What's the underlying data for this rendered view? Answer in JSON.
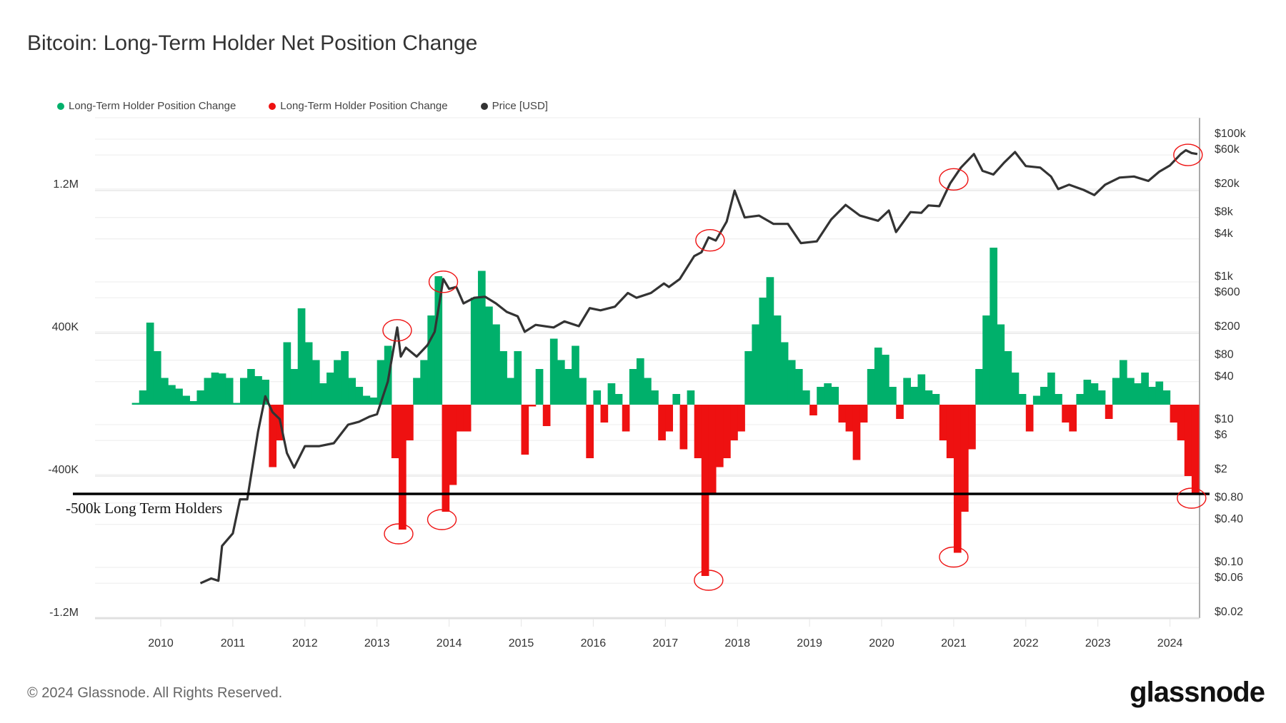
{
  "title": "Bitcoin: Long-Term Holder Net Position Change",
  "legend": [
    {
      "label": "Long-Term Holder Position Change",
      "color": "#00b06b"
    },
    {
      "label": "Long-Term Holder Position Change",
      "color": "#ee1111"
    },
    {
      "label": "Price [USD]",
      "color": "#333333"
    }
  ],
  "footer": "© 2024 Glassnode. All Rights Reserved.",
  "logo": "glassnode",
  "chart_data": {
    "type": "bar",
    "title": "Bitcoin: Long-Term Holder Net Position Change",
    "left_axis": {
      "ticks": [
        {
          "v": 1200,
          "label": "1.2M"
        },
        {
          "v": 400,
          "label": "400K"
        },
        {
          "v": -400,
          "label": "-400K"
        },
        {
          "v": -1200,
          "label": "-1.2M"
        }
      ],
      "range_k": [
        -1200,
        1400
      ],
      "unit": "thousand BTC"
    },
    "right_axis": {
      "scale": "log",
      "ticks": [
        {
          "v": 100000,
          "label": "$100k"
        },
        {
          "v": 60000,
          "label": "$60k"
        },
        {
          "v": 20000,
          "label": "$20k"
        },
        {
          "v": 8000,
          "label": "$8k"
        },
        {
          "v": 4000,
          "label": "$4k"
        },
        {
          "v": 1000,
          "label": "$1k"
        },
        {
          "v": 600,
          "label": "$600"
        },
        {
          "v": 200,
          "label": "$200"
        },
        {
          "v": 80,
          "label": "$80"
        },
        {
          "v": 40,
          "label": "$40"
        },
        {
          "v": 10,
          "label": "$10"
        },
        {
          "v": 6,
          "label": "$6"
        },
        {
          "v": 2,
          "label": "$2"
        },
        {
          "v": 0.8,
          "label": "$0.80"
        },
        {
          "v": 0.4,
          "label": "$0.40"
        },
        {
          "v": 0.1,
          "label": "$0.10"
        },
        {
          "v": 0.06,
          "label": "$0.06"
        },
        {
          "v": 0.02,
          "label": "$0.02"
        }
      ]
    },
    "x_ticks": [
      "2010",
      "2011",
      "2012",
      "2013",
      "2014",
      "2015",
      "2016",
      "2017",
      "2018",
      "2019",
      "2020",
      "2021",
      "2022",
      "2023",
      "2024"
    ],
    "position_change": {
      "start_year": 2009.5,
      "step_year": 0.1,
      "values_k": [
        0,
        10,
        80,
        460,
        300,
        150,
        110,
        90,
        50,
        20,
        80,
        150,
        180,
        175,
        150,
        10,
        150,
        200,
        160,
        140,
        -350,
        -200,
        350,
        200,
        540,
        350,
        250,
        120,
        180,
        250,
        300,
        150,
        100,
        50,
        40,
        250,
        330,
        -300,
        -700,
        -200,
        150,
        250,
        500,
        720,
        -600,
        -450,
        -150,
        -150,
        600,
        750,
        550,
        450,
        300,
        150,
        300,
        -280,
        -10,
        200,
        -120,
        370,
        250,
        200,
        330,
        150,
        -300,
        80,
        -100,
        120,
        60,
        -150,
        200,
        260,
        150,
        80,
        -200,
        -150,
        60,
        -250,
        80,
        -300,
        -960,
        -500,
        -350,
        -300,
        -200,
        -150,
        300,
        450,
        600,
        715,
        500,
        350,
        250,
        200,
        80,
        -60,
        100,
        120,
        100,
        -100,
        -150,
        -310,
        -100,
        200,
        320,
        280,
        100,
        -80,
        150,
        100,
        170,
        80,
        60,
        -200,
        -300,
        -830,
        -600,
        -250,
        200,
        500,
        880,
        450,
        300,
        180,
        60,
        -150,
        50,
        100,
        180,
        60,
        -100,
        -150,
        60,
        140,
        120,
        80,
        -80,
        150,
        250,
        150,
        120,
        180,
        100,
        130,
        80,
        -100,
        -200,
        -400,
        -500
      ]
    },
    "price": [
      [
        2010.55,
        0.06
      ],
      [
        2010.7,
        0.07
      ],
      [
        2010.8,
        0.065
      ],
      [
        2010.85,
        0.2
      ],
      [
        2011.0,
        0.3
      ],
      [
        2011.1,
        0.9
      ],
      [
        2011.2,
        0.9
      ],
      [
        2011.35,
        8
      ],
      [
        2011.45,
        25
      ],
      [
        2011.55,
        15
      ],
      [
        2011.65,
        12
      ],
      [
        2011.75,
        4
      ],
      [
        2011.85,
        2.5
      ],
      [
        2012.0,
        5
      ],
      [
        2012.2,
        5
      ],
      [
        2012.4,
        5.5
      ],
      [
        2012.6,
        10
      ],
      [
        2012.75,
        11
      ],
      [
        2012.9,
        13
      ],
      [
        2013.0,
        14
      ],
      [
        2013.15,
        40
      ],
      [
        2013.28,
        230
      ],
      [
        2013.33,
        90
      ],
      [
        2013.4,
        120
      ],
      [
        2013.55,
        90
      ],
      [
        2013.7,
        130
      ],
      [
        2013.8,
        200
      ],
      [
        2013.92,
        1100
      ],
      [
        2014.0,
        800
      ],
      [
        2014.1,
        850
      ],
      [
        2014.2,
        500
      ],
      [
        2014.35,
        600
      ],
      [
        2014.5,
        620
      ],
      [
        2014.65,
        500
      ],
      [
        2014.8,
        380
      ],
      [
        2014.95,
        330
      ],
      [
        2015.05,
        200
      ],
      [
        2015.2,
        250
      ],
      [
        2015.45,
        230
      ],
      [
        2015.6,
        280
      ],
      [
        2015.8,
        240
      ],
      [
        2015.95,
        430
      ],
      [
        2016.1,
        400
      ],
      [
        2016.3,
        450
      ],
      [
        2016.48,
        700
      ],
      [
        2016.6,
        600
      ],
      [
        2016.8,
        700
      ],
      [
        2016.98,
        950
      ],
      [
        2017.05,
        850
      ],
      [
        2017.2,
        1100
      ],
      [
        2017.4,
        2300
      ],
      [
        2017.5,
        2600
      ],
      [
        2017.6,
        4200
      ],
      [
        2017.7,
        3800
      ],
      [
        2017.85,
        7000
      ],
      [
        2017.96,
        19000
      ],
      [
        2018.05,
        11000
      ],
      [
        2018.1,
        8000
      ],
      [
        2018.3,
        8500
      ],
      [
        2018.5,
        6500
      ],
      [
        2018.7,
        6500
      ],
      [
        2018.88,
        3500
      ],
      [
        2019.1,
        3700
      ],
      [
        2019.3,
        7500
      ],
      [
        2019.5,
        12000
      ],
      [
        2019.7,
        8500
      ],
      [
        2019.95,
        7200
      ],
      [
        2020.1,
        10000
      ],
      [
        2020.2,
        5000
      ],
      [
        2020.4,
        9500
      ],
      [
        2020.55,
        9300
      ],
      [
        2020.65,
        11800
      ],
      [
        2020.8,
        11500
      ],
      [
        2020.95,
        24000
      ],
      [
        2021.1,
        40000
      ],
      [
        2021.28,
        62000
      ],
      [
        2021.4,
        36000
      ],
      [
        2021.55,
        32000
      ],
      [
        2021.7,
        47000
      ],
      [
        2021.85,
        66000
      ],
      [
        2022.0,
        42000
      ],
      [
        2022.2,
        40000
      ],
      [
        2022.35,
        30000
      ],
      [
        2022.45,
        20000
      ],
      [
        2022.6,
        23000
      ],
      [
        2022.8,
        19500
      ],
      [
        2022.95,
        16500
      ],
      [
        2023.1,
        23000
      ],
      [
        2023.3,
        29000
      ],
      [
        2023.5,
        30000
      ],
      [
        2023.7,
        26000
      ],
      [
        2023.85,
        35000
      ],
      [
        2024.0,
        43000
      ],
      [
        2024.15,
        62000
      ],
      [
        2024.22,
        70000
      ],
      [
        2024.3,
        64000
      ],
      [
        2024.38,
        62000
      ]
    ],
    "reference_line": {
      "value_k": -500,
      "label": "-500k Long Term Holders"
    },
    "annotations_price": [
      [
        2013.28,
        230
      ],
      [
        2013.92,
        1100
      ],
      [
        2017.62,
        4200
      ],
      [
        2021.0,
        30000
      ],
      [
        2024.25,
        66000
      ]
    ],
    "annotations_change": [
      [
        2013.3,
        -700
      ],
      [
        2013.9,
        -620
      ],
      [
        2017.6,
        -960
      ],
      [
        2021.0,
        -830
      ],
      [
        2024.3,
        -500
      ]
    ]
  }
}
